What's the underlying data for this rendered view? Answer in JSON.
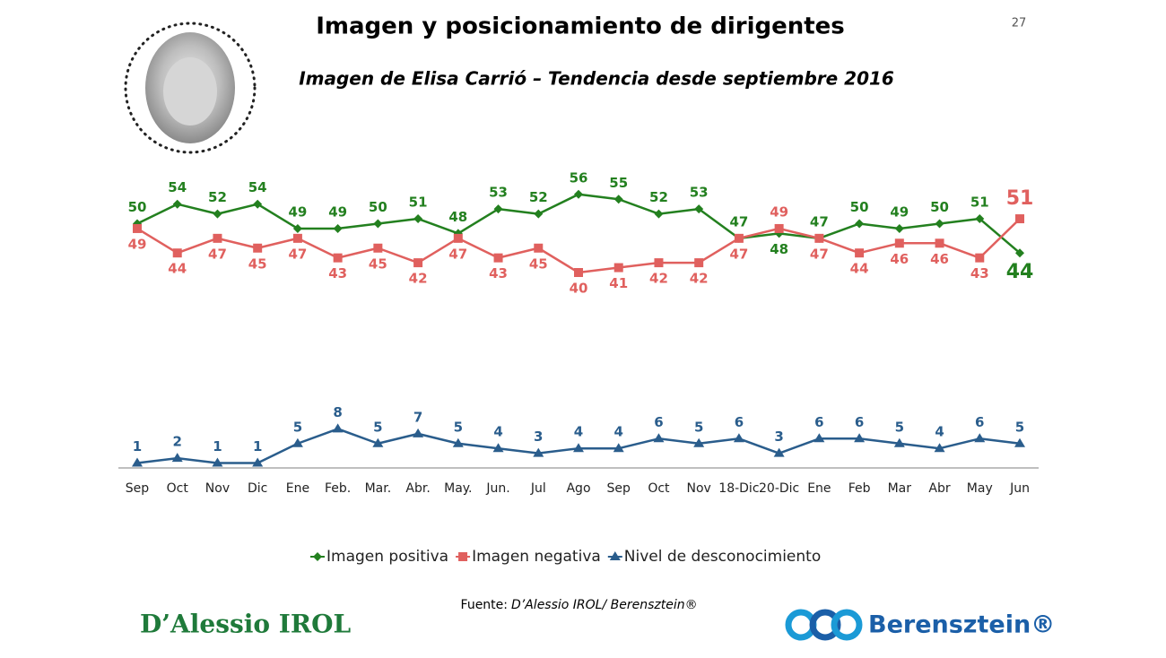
{
  "page_number": "27",
  "chart_data": {
    "type": "line",
    "title": "Imagen y posicionamiento de dirigentes",
    "subtitle": "Imagen de Elisa Carrió – Tendencia desde septiembre 2016",
    "categories": [
      "Sep",
      "Oct",
      "Nov",
      "Dic",
      "Ene",
      "Feb.",
      "Mar.",
      "Abr.",
      "May.",
      "Jun.",
      "Jul",
      "Ago",
      "Sep",
      "Oct",
      "Nov",
      "18-Dic",
      "20-Dic",
      "Ene",
      "Feb",
      "Mar",
      "Abr",
      "May",
      "Jun"
    ],
    "series": [
      {
        "name": "Imagen positiva",
        "color": "#23801f",
        "marker": "diamond",
        "values": [
          50,
          54,
          52,
          54,
          49,
          49,
          50,
          51,
          48,
          53,
          52,
          56,
          55,
          52,
          53,
          47,
          48,
          47,
          50,
          49,
          50,
          51,
          44
        ]
      },
      {
        "name": "Imagen negativa",
        "color": "#e0605e",
        "marker": "square",
        "values": [
          49,
          44,
          47,
          45,
          47,
          43,
          45,
          42,
          47,
          43,
          45,
          40,
          41,
          42,
          42,
          47,
          49,
          47,
          44,
          46,
          46,
          43,
          51
        ]
      },
      {
        "name": "Nivel de desconocimiento",
        "color": "#2a5d8c",
        "marker": "triangle",
        "values": [
          1,
          2,
          1,
          1,
          5,
          8,
          5,
          7,
          5,
          4,
          3,
          4,
          4,
          6,
          5,
          6,
          3,
          6,
          6,
          5,
          4,
          6,
          5
        ]
      }
    ],
    "ylim": [
      0,
      60
    ],
    "legend": "bottom"
  },
  "source": {
    "label": "Fuente:",
    "text": "D’Alessio IROL/ Berensztein®"
  },
  "logos": [
    "D’Alessio IROL",
    "Berensztein®"
  ]
}
